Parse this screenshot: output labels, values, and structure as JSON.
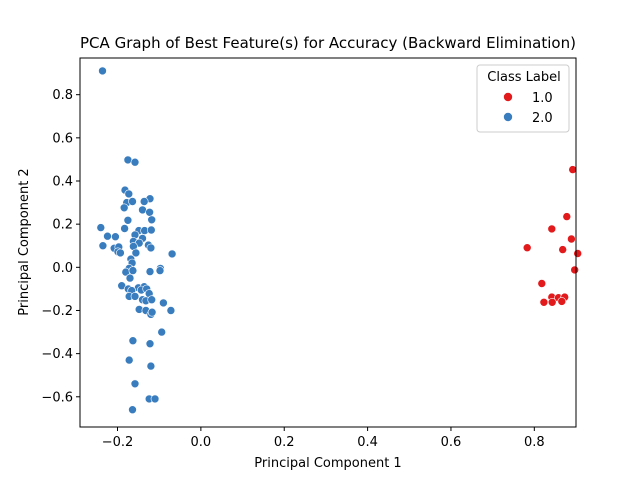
{
  "chart_data": {
    "type": "scatter",
    "title": "PCA Graph of Best Feature(s) for Accuracy (Backward Elimination)",
    "xlabel": "Principal Component 1",
    "ylabel": "Principal Component 2",
    "xlim": [
      -0.29,
      0.9
    ],
    "ylim": [
      -0.74,
      0.97
    ],
    "xticks": [
      -0.2,
      0.0,
      0.2,
      0.4,
      0.6,
      0.8
    ],
    "xtick_labels": [
      "−0.2",
      "0.0",
      "0.2",
      "0.4",
      "0.6",
      "0.8"
    ],
    "yticks": [
      -0.6,
      -0.4,
      -0.2,
      0.0,
      0.2,
      0.4,
      0.6,
      0.8
    ],
    "ytick_labels": [
      "−0.6",
      "−0.4",
      "−0.2",
      "0.0",
      "0.2",
      "0.4",
      "0.6",
      "0.8"
    ],
    "grid": false,
    "legend": {
      "title": "Class Label",
      "placement": "top-right"
    },
    "series": [
      {
        "name": "1.0",
        "color": "#e31a1c",
        "points": [
          [
            0.892,
            0.453
          ],
          [
            0.878,
            0.235
          ],
          [
            0.842,
            0.178
          ],
          [
            0.889,
            0.131
          ],
          [
            0.783,
            0.091
          ],
          [
            0.868,
            0.082
          ],
          [
            0.904,
            0.064
          ],
          [
            0.897,
            -0.012
          ],
          [
            0.818,
            -0.075
          ],
          [
            0.842,
            -0.138
          ],
          [
            0.858,
            -0.141
          ],
          [
            0.873,
            -0.138
          ],
          [
            0.823,
            -0.162
          ],
          [
            0.843,
            -0.162
          ],
          [
            0.866,
            -0.158
          ]
        ]
      },
      {
        "name": "2.0",
        "color": "#3a7dbf",
        "points": [
          [
            -0.236,
            0.91
          ],
          [
            -0.175,
            0.498
          ],
          [
            -0.158,
            0.487
          ],
          [
            -0.182,
            0.358
          ],
          [
            -0.173,
            0.34
          ],
          [
            -0.122,
            0.318
          ],
          [
            -0.136,
            0.305
          ],
          [
            -0.178,
            0.3
          ],
          [
            -0.164,
            0.305
          ],
          [
            -0.184,
            0.276
          ],
          [
            -0.14,
            0.266
          ],
          [
            -0.123,
            0.255
          ],
          [
            -0.175,
            0.218
          ],
          [
            -0.118,
            0.22
          ],
          [
            -0.183,
            0.18
          ],
          [
            -0.24,
            0.184
          ],
          [
            -0.149,
            0.17
          ],
          [
            -0.135,
            0.17
          ],
          [
            -0.119,
            0.173
          ],
          [
            -0.158,
            0.15
          ],
          [
            -0.224,
            0.144
          ],
          [
            -0.205,
            0.142
          ],
          [
            -0.14,
            0.134
          ],
          [
            -0.162,
            0.12
          ],
          [
            -0.148,
            0.112
          ],
          [
            -0.126,
            0.103
          ],
          [
            -0.235,
            0.1
          ],
          [
            -0.208,
            0.088
          ],
          [
            -0.197,
            0.094
          ],
          [
            -0.162,
            0.097
          ],
          [
            -0.12,
            0.09
          ],
          [
            -0.199,
            0.072
          ],
          [
            -0.193,
            0.067
          ],
          [
            -0.156,
            0.067
          ],
          [
            -0.069,
            0.062
          ],
          [
            -0.168,
            0.038
          ],
          [
            -0.165,
            0.02
          ],
          [
            -0.172,
            -0.005
          ],
          [
            -0.18,
            -0.022
          ],
          [
            -0.163,
            -0.015
          ],
          [
            -0.097,
            -0.005
          ],
          [
            -0.122,
            -0.02
          ],
          [
            -0.098,
            -0.015
          ],
          [
            -0.17,
            -0.05
          ],
          [
            -0.19,
            -0.085
          ],
          [
            -0.174,
            -0.1
          ],
          [
            -0.15,
            -0.095
          ],
          [
            -0.136,
            -0.09
          ],
          [
            -0.166,
            -0.108
          ],
          [
            -0.143,
            -0.105
          ],
          [
            -0.13,
            -0.1
          ],
          [
            -0.172,
            -0.135
          ],
          [
            -0.158,
            -0.135
          ],
          [
            -0.124,
            -0.122
          ],
          [
            -0.14,
            -0.15
          ],
          [
            -0.132,
            -0.155
          ],
          [
            -0.118,
            -0.15
          ],
          [
            -0.09,
            -0.165
          ],
          [
            -0.148,
            -0.195
          ],
          [
            -0.132,
            -0.2
          ],
          [
            -0.12,
            -0.218
          ],
          [
            -0.117,
            -0.208
          ],
          [
            -0.072,
            -0.2
          ],
          [
            -0.094,
            -0.3
          ],
          [
            -0.122,
            -0.354
          ],
          [
            -0.163,
            -0.34
          ],
          [
            -0.172,
            -0.43
          ],
          [
            -0.12,
            -0.458
          ],
          [
            -0.158,
            -0.54
          ],
          [
            -0.124,
            -0.61
          ],
          [
            -0.11,
            -0.61
          ],
          [
            -0.164,
            -0.66
          ]
        ]
      }
    ]
  }
}
